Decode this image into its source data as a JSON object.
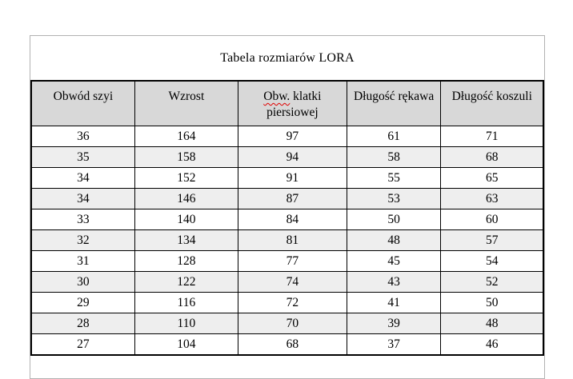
{
  "title": "Tabela rozmiarów LORA",
  "table": {
    "columns": [
      {
        "label": "Obwód szyi"
      },
      {
        "label": "Wzrost"
      },
      {
        "label": "Obw. klatki piersiowej",
        "spellcheck_segment": "Obw."
      },
      {
        "label": "Długość rękawa"
      },
      {
        "label": "Długość koszuli"
      }
    ],
    "rows": [
      [
        36,
        164,
        97,
        61,
        71
      ],
      [
        35,
        158,
        94,
        58,
        68
      ],
      [
        34,
        152,
        91,
        55,
        65
      ],
      [
        34,
        146,
        87,
        53,
        63
      ],
      [
        33,
        140,
        84,
        50,
        60
      ],
      [
        32,
        134,
        81,
        48,
        57
      ],
      [
        31,
        128,
        77,
        45,
        54
      ],
      [
        30,
        122,
        74,
        43,
        52
      ],
      [
        29,
        116,
        72,
        41,
        50
      ],
      [
        28,
        110,
        70,
        39,
        48
      ],
      [
        27,
        104,
        68,
        37,
        46
      ]
    ]
  },
  "colors": {
    "header_bg": "#d8d8d8",
    "stripe_bg": "#eeeeee",
    "table_border": "#000000",
    "frame_border": "#b2b2b2",
    "spellcheck": "#e00000"
  }
}
